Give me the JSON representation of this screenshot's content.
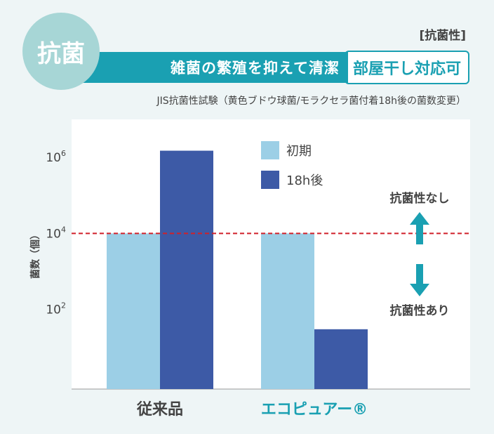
{
  "header": {
    "badge": "抗菌",
    "category": "[抗菌性]",
    "banner_text": "雑菌の繁殖を抑えて清潔",
    "banner_box": "部屋干し対応可",
    "note": "JIS抗菌性試験（黄色ブドウ球菌/モラクセラ菌付着18h後の菌数変更）"
  },
  "colors": {
    "initial": "#9ccfe6",
    "after": "#3d5aa6",
    "threshold": "#d0202a",
    "arrow": "#1aa0b2",
    "brand_label": "#1aa0b2"
  },
  "chart_data": {
    "type": "bar",
    "scale": "log",
    "categories": [
      "従来品",
      "エコピュアー®"
    ],
    "series": [
      {
        "name": "初期",
        "values": [
          10000,
          10000
        ]
      },
      {
        "name": "18h後",
        "values": [
          1500000,
          30
        ]
      }
    ],
    "ylabel": "菌数（個）",
    "ylim": [
      0.8,
      10000000
    ],
    "yticks": [
      {
        "value": 100,
        "base": "10",
        "exp": "2"
      },
      {
        "value": 10000,
        "base": "10",
        "exp": "4"
      },
      {
        "value": 1000000,
        "base": "10",
        "exp": "6"
      }
    ],
    "threshold": 10000,
    "legend_position": "top-center",
    "annotations": {
      "above": "抗菌性なし",
      "below": "抗菌性あり"
    },
    "grid": false
  }
}
